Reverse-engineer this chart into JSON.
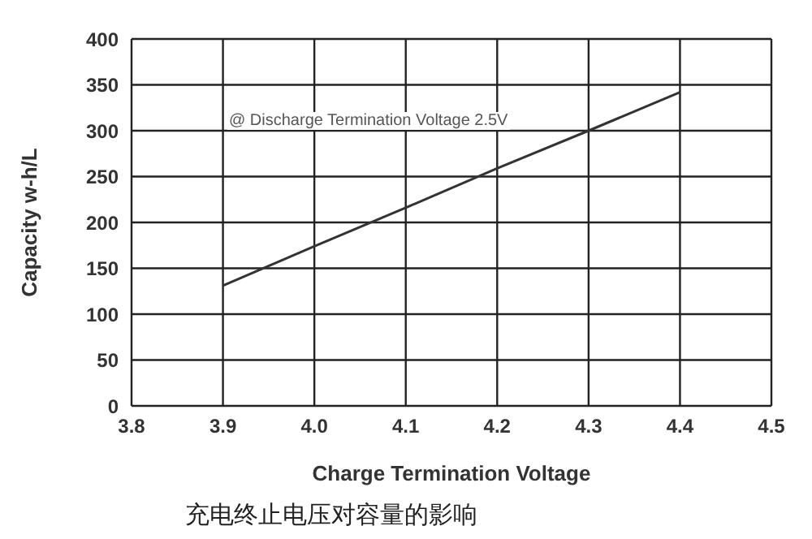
{
  "chart_data": {
    "type": "line",
    "xlabel": "Charge Termination Voltage",
    "ylabel": "Capacity w-h/L",
    "annotations": [
      "@ Discharge Termination Voltage 2.5V",
      "充电终止电压对容量的影响"
    ],
    "x": [
      3.9,
      4.0,
      4.1,
      4.2,
      4.3,
      4.4
    ],
    "series": [
      {
        "color": "#333333",
        "values": [
          131,
          174,
          216,
          259,
          300,
          342
        ]
      }
    ],
    "xlim": [
      3.8,
      4.5
    ],
    "xticks": [
      {
        "value": 3.8,
        "label": "3.8"
      },
      {
        "value": 3.9,
        "label": "3.9"
      },
      {
        "value": 4.0,
        "label": "4.0"
      },
      {
        "value": 4.1,
        "label": "4.1"
      },
      {
        "value": 4.2,
        "label": "4.2"
      },
      {
        "value": 4.3,
        "label": "4.3"
      },
      {
        "value": 4.4,
        "label": "4.4"
      },
      {
        "value": 4.5,
        "label": "4.5"
      }
    ],
    "ylim": [
      0,
      400
    ],
    "yticks": [
      0,
      50,
      100,
      150,
      200,
      250,
      300,
      350,
      400
    ],
    "grid": true,
    "legend": false,
    "marker": "none",
    "line_style": "solid"
  }
}
